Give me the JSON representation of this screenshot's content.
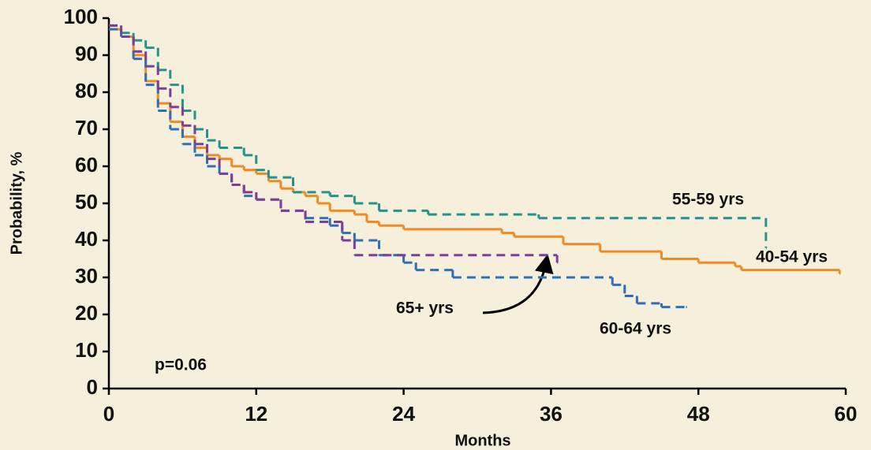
{
  "chart_data": {
    "type": "step",
    "step": "post",
    "xlabel": "Months",
    "ylabel": "Probability, %",
    "xlim": [
      0,
      60
    ],
    "xticks": [
      0,
      12,
      24,
      36,
      48,
      60
    ],
    "ylim": [
      0,
      100
    ],
    "yticks": [
      0,
      10,
      20,
      30,
      40,
      50,
      60,
      70,
      80,
      90,
      100
    ],
    "annotation": "p=0.06",
    "series": [
      {
        "name": "40-54 yrs",
        "color": "#f08a24",
        "dashed": false,
        "x": [
          0,
          1,
          2,
          3,
          4,
          5,
          6,
          7,
          8,
          9,
          10,
          11,
          12,
          13,
          14,
          15,
          16,
          17,
          18,
          20,
          21,
          22,
          24,
          32,
          33,
          37,
          40,
          45,
          48,
          51,
          51.5,
          59.5
        ],
        "values": [
          97,
          95,
          90,
          83,
          77,
          72,
          68,
          65,
          63,
          62,
          60,
          59,
          58,
          56,
          54,
          53,
          52,
          50,
          48,
          47,
          45,
          44,
          43,
          42,
          41,
          39,
          37,
          35,
          34,
          33,
          32,
          31
        ]
      },
      {
        "name": "55-59 yrs",
        "color": "#23938b",
        "dashed": true,
        "x": [
          0,
          1,
          2,
          3,
          4,
          5,
          6,
          7,
          8,
          9,
          11,
          12,
          13,
          15,
          18,
          20,
          22,
          26,
          35,
          53.5
        ],
        "values": [
          98,
          96,
          94,
          92,
          86,
          82,
          75,
          70,
          67,
          65,
          63,
          59,
          57,
          53,
          52,
          50,
          48,
          47,
          46,
          38
        ]
      },
      {
        "name": "60-64 yrs",
        "color": "#2f6fb3",
        "dashed": true,
        "x": [
          0,
          1,
          2,
          3,
          4,
          5,
          6,
          7,
          8,
          9,
          10,
          11,
          12,
          14,
          16,
          18,
          19,
          20,
          22,
          24,
          25,
          28,
          41,
          42,
          43,
          45,
          47
        ],
        "values": [
          97,
          95,
          89,
          82,
          75,
          70,
          66,
          63,
          60,
          58,
          55,
          52,
          51,
          48,
          46,
          44,
          42,
          40,
          36,
          34,
          32,
          30,
          28,
          25,
          23,
          22,
          22
        ]
      },
      {
        "name": "65+ yrs",
        "color": "#7b3f98",
        "dashed": true,
        "x": [
          0,
          1,
          2,
          3,
          4,
          5,
          6,
          7,
          8,
          9,
          10,
          11,
          12,
          14,
          16,
          19,
          20,
          36.5
        ],
        "values": [
          98,
          95,
          91,
          87,
          81,
          76,
          71,
          66,
          62,
          58,
          55,
          53,
          51,
          48,
          45,
          40,
          36,
          34
        ]
      }
    ]
  }
}
